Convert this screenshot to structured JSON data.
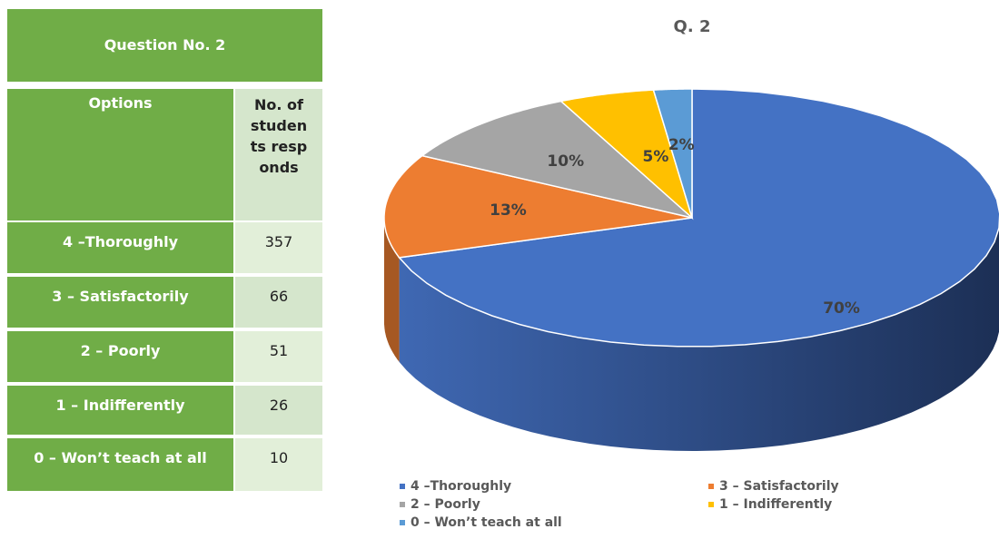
{
  "table": {
    "title": "Question No. 2",
    "header": [
      "Options",
      "No. of students responds"
    ],
    "rows": [
      [
        "4 –Thoroughly",
        "357"
      ],
      [
        "3 – Satisfactorily",
        "66"
      ],
      [
        "2 – Poorly",
        "51"
      ],
      [
        "1 – Indifferently",
        "26"
      ],
      [
        "0 – Won’t teach at all",
        "10"
      ]
    ]
  },
  "chart_data": {
    "type": "pie",
    "title": "Q. 2",
    "categories": [
      "4 –Thoroughly",
      "3 – Satisfactorily",
      "2 – Poorly",
      "1 – Indifferently",
      "0 – Won’t teach at all"
    ],
    "values": [
      70,
      13,
      10,
      5,
      2
    ],
    "value_labels": [
      "70%",
      "13%",
      "10%",
      "5%",
      "2%"
    ],
    "colors": [
      "#4472c4",
      "#ed7d31",
      "#a5a5a5",
      "#ffc000",
      "#5b9bd5"
    ],
    "legend": "bottom"
  }
}
